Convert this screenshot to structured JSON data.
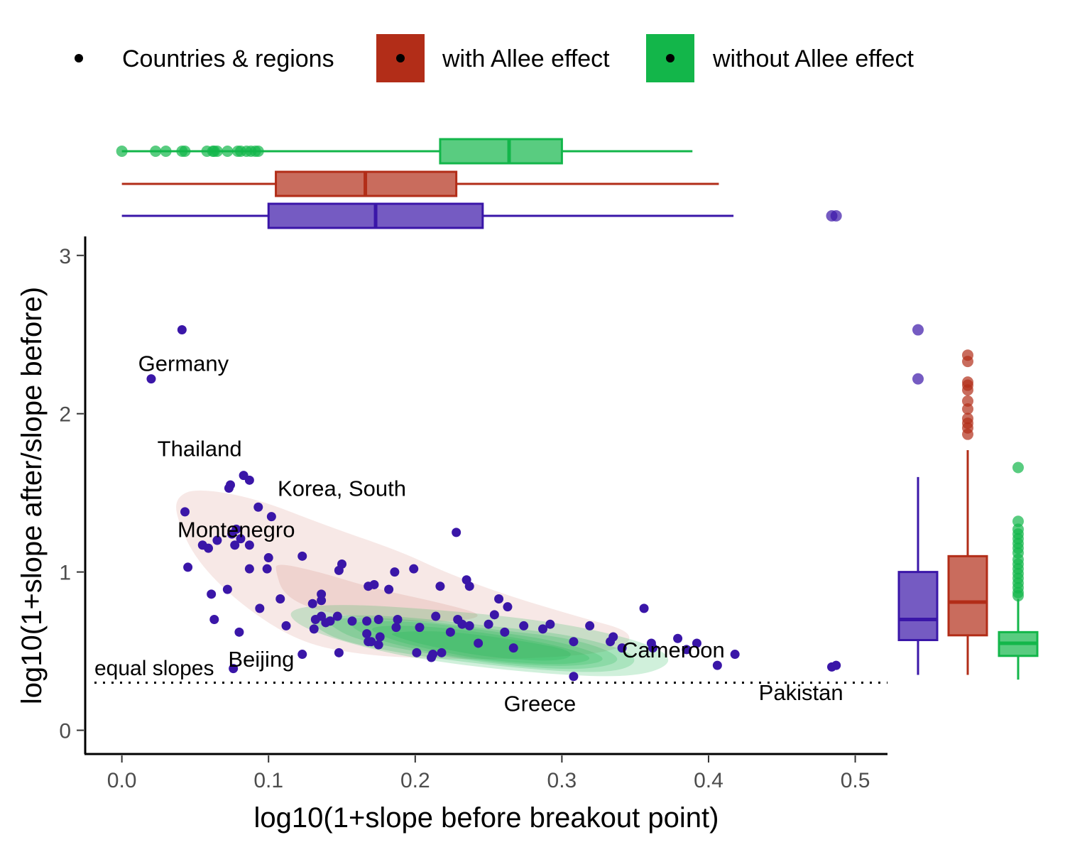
{
  "chart_data": {
    "type": "scatter",
    "xlabel": "log10(1+slope before breakout point)",
    "ylabel": "log10(1+slope after/slope before)",
    "xlim": [
      -0.025,
      0.522
    ],
    "ylim": [
      -0.15,
      3.12
    ],
    "x_ticks": [
      0.0,
      0.1,
      0.2,
      0.3,
      0.4,
      0.5
    ],
    "x_tick_labels": [
      "0.0",
      "0.1",
      "0.2",
      "0.3",
      "0.4",
      "0.5"
    ],
    "y_ticks": [
      0,
      1,
      2,
      3
    ],
    "y_tick_labels": [
      "0",
      "1",
      "2",
      "3"
    ],
    "grid": false,
    "legend_position": "top",
    "legend": [
      {
        "label": "Countries & regions",
        "color": "#3a16a8",
        "key": "point"
      },
      {
        "label": "with Allee effect",
        "color": "#b22d18",
        "key": "fill"
      },
      {
        "label": "without Allee effect",
        "color": "#13b64a",
        "key": "fill"
      }
    ],
    "reference_line": {
      "y": 0.301,
      "style": "dotted",
      "label": "equal slopes"
    },
    "points": [
      {
        "x": 0.041,
        "y": 2.53
      },
      {
        "x": 0.02,
        "y": 2.22
      },
      {
        "x": 0.083,
        "y": 1.61
      },
      {
        "x": 0.087,
        "y": 1.58
      },
      {
        "x": 0.074,
        "y": 1.55
      },
      {
        "x": 0.073,
        "y": 1.53
      },
      {
        "x": 0.093,
        "y": 1.41
      },
      {
        "x": 0.102,
        "y": 1.35
      },
      {
        "x": 0.043,
        "y": 1.38
      },
      {
        "x": 0.078,
        "y": 1.27
      },
      {
        "x": 0.075,
        "y": 1.24
      },
      {
        "x": 0.081,
        "y": 1.21
      },
      {
        "x": 0.065,
        "y": 1.2
      },
      {
        "x": 0.055,
        "y": 1.17
      },
      {
        "x": 0.059,
        "y": 1.15
      },
      {
        "x": 0.077,
        "y": 1.17
      },
      {
        "x": 0.087,
        "y": 1.17
      },
      {
        "x": 0.228,
        "y": 1.25
      },
      {
        "x": 0.045,
        "y": 1.03
      },
      {
        "x": 0.087,
        "y": 1.02
      },
      {
        "x": 0.099,
        "y": 1.02
      },
      {
        "x": 0.1,
        "y": 1.09
      },
      {
        "x": 0.123,
        "y": 1.1
      },
      {
        "x": 0.15,
        "y": 1.05
      },
      {
        "x": 0.148,
        "y": 1.01
      },
      {
        "x": 0.186,
        "y": 1.0
      },
      {
        "x": 0.199,
        "y": 1.02
      },
      {
        "x": 0.061,
        "y": 0.86
      },
      {
        "x": 0.072,
        "y": 0.89
      },
      {
        "x": 0.094,
        "y": 0.77
      },
      {
        "x": 0.063,
        "y": 0.7
      },
      {
        "x": 0.08,
        "y": 0.62
      },
      {
        "x": 0.112,
        "y": 0.66
      },
      {
        "x": 0.108,
        "y": 0.83
      },
      {
        "x": 0.136,
        "y": 0.82
      },
      {
        "x": 0.136,
        "y": 0.86
      },
      {
        "x": 0.13,
        "y": 0.8
      },
      {
        "x": 0.168,
        "y": 0.91
      },
      {
        "x": 0.172,
        "y": 0.92
      },
      {
        "x": 0.182,
        "y": 0.89
      },
      {
        "x": 0.217,
        "y": 0.91
      },
      {
        "x": 0.235,
        "y": 0.95
      },
      {
        "x": 0.237,
        "y": 0.91
      },
      {
        "x": 0.257,
        "y": 0.83
      },
      {
        "x": 0.263,
        "y": 0.78
      },
      {
        "x": 0.356,
        "y": 0.77
      },
      {
        "x": 0.132,
        "y": 0.7
      },
      {
        "x": 0.136,
        "y": 0.72
      },
      {
        "x": 0.139,
        "y": 0.68
      },
      {
        "x": 0.142,
        "y": 0.69
      },
      {
        "x": 0.131,
        "y": 0.64
      },
      {
        "x": 0.147,
        "y": 0.72
      },
      {
        "x": 0.157,
        "y": 0.69
      },
      {
        "x": 0.167,
        "y": 0.69
      },
      {
        "x": 0.175,
        "y": 0.7
      },
      {
        "x": 0.188,
        "y": 0.7
      },
      {
        "x": 0.167,
        "y": 0.61
      },
      {
        "x": 0.17,
        "y": 0.56
      },
      {
        "x": 0.176,
        "y": 0.59
      },
      {
        "x": 0.168,
        "y": 0.56
      },
      {
        "x": 0.175,
        "y": 0.54
      },
      {
        "x": 0.187,
        "y": 0.65
      },
      {
        "x": 0.203,
        "y": 0.65
      },
      {
        "x": 0.214,
        "y": 0.72
      },
      {
        "x": 0.224,
        "y": 0.62
      },
      {
        "x": 0.229,
        "y": 0.7
      },
      {
        "x": 0.232,
        "y": 0.67
      },
      {
        "x": 0.237,
        "y": 0.66
      },
      {
        "x": 0.243,
        "y": 0.55
      },
      {
        "x": 0.25,
        "y": 0.67
      },
      {
        "x": 0.254,
        "y": 0.73
      },
      {
        "x": 0.261,
        "y": 0.62
      },
      {
        "x": 0.267,
        "y": 0.52
      },
      {
        "x": 0.274,
        "y": 0.66
      },
      {
        "x": 0.287,
        "y": 0.64
      },
      {
        "x": 0.292,
        "y": 0.67
      },
      {
        "x": 0.308,
        "y": 0.56
      },
      {
        "x": 0.319,
        "y": 0.66
      },
      {
        "x": 0.201,
        "y": 0.49
      },
      {
        "x": 0.211,
        "y": 0.46
      },
      {
        "x": 0.218,
        "y": 0.49
      },
      {
        "x": 0.212,
        "y": 0.48
      },
      {
        "x": 0.148,
        "y": 0.49
      },
      {
        "x": 0.123,
        "y": 0.48
      },
      {
        "x": 0.076,
        "y": 0.39
      },
      {
        "x": 0.308,
        "y": 0.34
      },
      {
        "x": 0.333,
        "y": 0.56
      },
      {
        "x": 0.341,
        "y": 0.52
      },
      {
        "x": 0.335,
        "y": 0.59
      },
      {
        "x": 0.361,
        "y": 0.55
      },
      {
        "x": 0.362,
        "y": 0.52
      },
      {
        "x": 0.379,
        "y": 0.58
      },
      {
        "x": 0.385,
        "y": 0.51
      },
      {
        "x": 0.392,
        "y": 0.55
      },
      {
        "x": 0.406,
        "y": 0.41
      },
      {
        "x": 0.418,
        "y": 0.48
      },
      {
        "x": 0.484,
        "y": 0.4
      },
      {
        "x": 0.487,
        "y": 0.41
      }
    ],
    "annotations": [
      {
        "text": "Germany",
        "x": 0.042,
        "y": 2.32
      },
      {
        "text": "Thailand",
        "x": 0.053,
        "y": 1.78
      },
      {
        "text": "Korea, South",
        "x": 0.15,
        "y": 1.53
      },
      {
        "text": "Montenegro",
        "x": 0.078,
        "y": 1.27
      },
      {
        "text": "Beijing",
        "x": 0.095,
        "y": 0.45
      },
      {
        "text": "Cameroon",
        "x": 0.376,
        "y": 0.51
      },
      {
        "text": "Greece",
        "x": 0.285,
        "y": 0.17
      },
      {
        "text": "Pakistan",
        "x": 0.463,
        "y": 0.24
      }
    ],
    "density_with_allee": [
      {
        "level": 1,
        "polygon": [
          [
            0.037,
            1.47
          ],
          [
            0.05,
            1.53
          ],
          [
            0.09,
            1.47
          ],
          [
            0.14,
            1.29
          ],
          [
            0.19,
            1.13
          ],
          [
            0.22,
            1.0
          ],
          [
            0.26,
            0.86
          ],
          [
            0.31,
            0.72
          ],
          [
            0.35,
            0.62
          ],
          [
            0.34,
            0.5
          ],
          [
            0.28,
            0.45
          ],
          [
            0.21,
            0.45
          ],
          [
            0.16,
            0.48
          ],
          [
            0.12,
            0.56
          ],
          [
            0.08,
            0.8
          ],
          [
            0.05,
            1.08
          ],
          [
            0.037,
            1.35
          ]
        ]
      },
      {
        "level": 2,
        "polygon": [
          [
            0.105,
            1.06
          ],
          [
            0.135,
            1.0
          ],
          [
            0.17,
            0.9
          ],
          [
            0.22,
            0.8
          ],
          [
            0.25,
            0.72
          ],
          [
            0.22,
            0.68
          ],
          [
            0.17,
            0.7
          ],
          [
            0.13,
            0.76
          ],
          [
            0.11,
            0.86
          ],
          [
            0.105,
            1.0
          ]
        ]
      }
    ],
    "density_without_allee": [
      {
        "level": 1,
        "polygon": [
          [
            0.113,
            0.77
          ],
          [
            0.15,
            0.8
          ],
          [
            0.22,
            0.76
          ],
          [
            0.3,
            0.68
          ],
          [
            0.36,
            0.55
          ],
          [
            0.378,
            0.43
          ],
          [
            0.35,
            0.33
          ],
          [
            0.28,
            0.36
          ],
          [
            0.2,
            0.45
          ],
          [
            0.15,
            0.56
          ],
          [
            0.118,
            0.67
          ]
        ]
      },
      {
        "level": 2,
        "polygon": [
          [
            0.128,
            0.72
          ],
          [
            0.18,
            0.73
          ],
          [
            0.25,
            0.66
          ],
          [
            0.31,
            0.6
          ],
          [
            0.355,
            0.47
          ],
          [
            0.34,
            0.36
          ],
          [
            0.28,
            0.38
          ],
          [
            0.2,
            0.47
          ],
          [
            0.15,
            0.56
          ],
          [
            0.13,
            0.66
          ]
        ]
      },
      {
        "level": 3,
        "polygon": [
          [
            0.14,
            0.71
          ],
          [
            0.19,
            0.71
          ],
          [
            0.25,
            0.64
          ],
          [
            0.31,
            0.58
          ],
          [
            0.345,
            0.45
          ],
          [
            0.32,
            0.38
          ],
          [
            0.27,
            0.4
          ],
          [
            0.21,
            0.48
          ],
          [
            0.16,
            0.57
          ],
          [
            0.142,
            0.66
          ]
        ]
      },
      {
        "level": 4,
        "polygon": [
          [
            0.15,
            0.69
          ],
          [
            0.2,
            0.69
          ],
          [
            0.25,
            0.63
          ],
          [
            0.3,
            0.56
          ],
          [
            0.335,
            0.45
          ],
          [
            0.31,
            0.4
          ],
          [
            0.26,
            0.42
          ],
          [
            0.21,
            0.49
          ],
          [
            0.17,
            0.58
          ]
        ]
      },
      {
        "level": 5,
        "polygon": [
          [
            0.165,
            0.66
          ],
          [
            0.21,
            0.66
          ],
          [
            0.26,
            0.6
          ],
          [
            0.3,
            0.53
          ],
          [
            0.325,
            0.45
          ],
          [
            0.3,
            0.41
          ],
          [
            0.25,
            0.44
          ],
          [
            0.21,
            0.51
          ],
          [
            0.18,
            0.58
          ]
        ]
      },
      {
        "level": 6,
        "polygon": [
          [
            0.18,
            0.62
          ],
          [
            0.22,
            0.63
          ],
          [
            0.27,
            0.57
          ],
          [
            0.31,
            0.5
          ],
          [
            0.3,
            0.43
          ],
          [
            0.25,
            0.46
          ],
          [
            0.21,
            0.53
          ],
          [
            0.19,
            0.58
          ]
        ]
      }
    ],
    "boxplots_x": [
      {
        "group": "without Allee effect",
        "min": 0.0,
        "q1": 0.217,
        "median": 0.264,
        "q3": 0.3,
        "max": 0.389,
        "outliers": [
          0.0,
          0.023,
          0.03,
          0.041,
          0.043,
          0.058,
          0.062,
          0.063,
          0.065,
          0.072,
          0.079,
          0.081,
          0.085,
          0.088,
          0.091,
          0.093
        ]
      },
      {
        "group": "with Allee effect",
        "min": 0.0,
        "q1": 0.105,
        "median": 0.166,
        "q3": 0.228,
        "max": 0.407,
        "outliers": []
      },
      {
        "group": "Countries & regions",
        "min": 0.0,
        "q1": 0.1,
        "median": 0.173,
        "q3": 0.246,
        "max": 0.417,
        "outliers": [
          0.484,
          0.487
        ]
      }
    ],
    "boxplots_y": [
      {
        "group": "Countries & regions",
        "min": 0.35,
        "q1": 0.57,
        "median": 0.7,
        "q3": 1.0,
        "max": 1.6,
        "outliers": [
          2.53,
          2.22
        ]
      },
      {
        "group": "with Allee effect",
        "min": 0.35,
        "q1": 0.6,
        "median": 0.81,
        "q3": 1.1,
        "max": 1.77,
        "outliers": [
          1.87,
          1.91,
          1.94,
          1.97,
          2.03,
          2.08,
          2.15,
          2.18,
          2.2,
          2.33,
          2.37
        ]
      },
      {
        "group": "without Allee effect",
        "min": 0.32,
        "q1": 0.47,
        "median": 0.55,
        "q3": 0.62,
        "max": 0.83,
        "outliers": [
          0.85,
          0.87,
          0.9,
          0.93,
          0.96,
          0.99,
          1.02,
          1.05,
          1.08,
          1.12,
          1.15,
          1.18,
          1.21,
          1.24,
          1.27,
          1.32,
          1.66
        ]
      }
    ],
    "colors": {
      "countries": "#3a16a8",
      "with_allee": "#b22d18",
      "without_allee": "#13b64a"
    }
  }
}
